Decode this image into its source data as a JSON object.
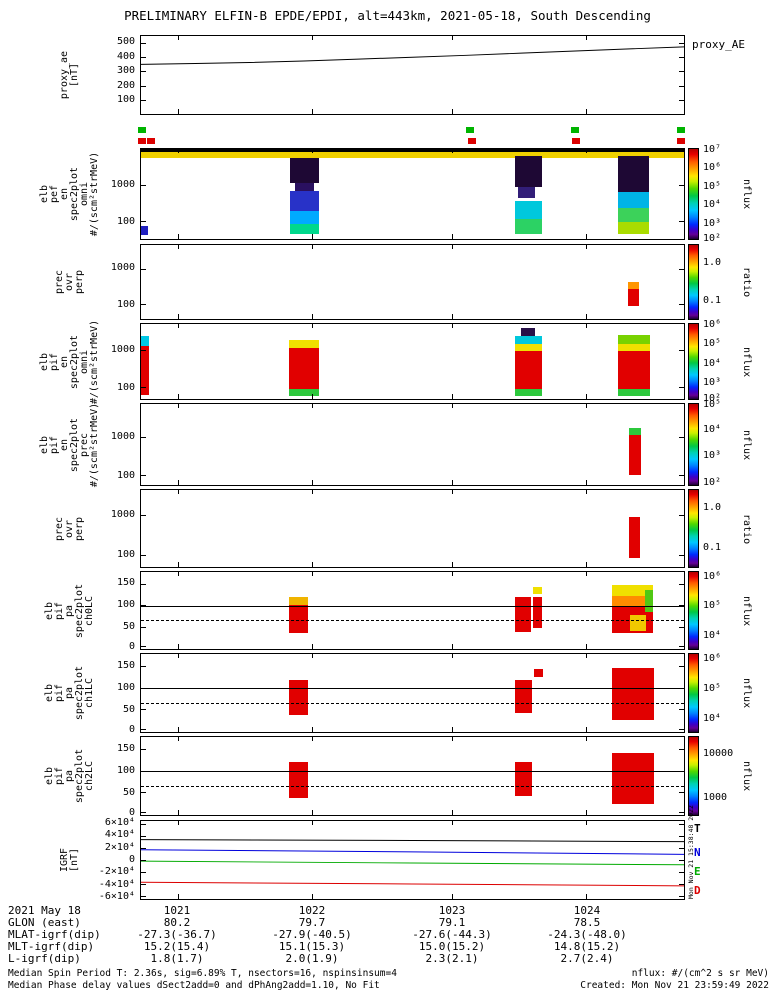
{
  "title": "PRELIMINARY ELFIN-B EPDE/EPDI, alt=443km, 2021-05-18, South Descending",
  "vertical_date": "Mon Nov 21 15:38:48 2022",
  "footer": {
    "left_line1": "Median Spin Period T: 2.36s, sig=6.89% T, nsectors=16, nspinsinsum=4",
    "left_line2": "Median Phase delay values dSect2add=0 and dPhAng2add=1.10, No Fit",
    "right_line1": "nflux: #/(cm^2 s sr MeV)",
    "right_line2": "Created: Mon Nov 21 23:59:49 2022"
  },
  "axis_table": {
    "row_labels": [
      "2021 May 18",
      "GLON (east)",
      "MLAT-igrf(dip)",
      "MLT-igrf(dip)",
      "L-igrf(dip)"
    ],
    "columns": [
      {
        "time": "1021",
        "glon": "80.2",
        "mlat": "-27.3(-36.7)",
        "mlt": "15.2(15.4)",
        "l": "1.8(1.7)"
      },
      {
        "time": "1022",
        "glon": "79.7",
        "mlat": "-27.9(-40.5)",
        "mlt": "15.1(15.3)",
        "l": "2.0(1.9)"
      },
      {
        "time": "1023",
        "glon": "79.1",
        "mlat": "-27.6(-44.3)",
        "mlt": "15.0(15.2)",
        "l": "2.3(2.1)"
      },
      {
        "time": "1024",
        "glon": "78.5",
        "mlat": "-24.3(-48.0)",
        "mlt": "14.8(15.2)",
        "l": "2.7(2.4)"
      }
    ]
  },
  "chart_data": {
    "type": "multi-panel-spectrogram",
    "x_axis_ticks": [
      "1021",
      "1022",
      "1023",
      "1024"
    ],
    "xticks_f": [
      0.068,
      0.3156,
      0.5725,
      0.8202
    ],
    "x_col_centers": [
      177,
      312,
      452,
      587
    ],
    "mark_colors": {
      "green": "#00b400",
      "red": "#dc0000"
    },
    "panels": [
      {
        "id": "proxy-ae",
        "top": 35,
        "h": 80,
        "left_lines": [
          "proxy_ae",
          "[nT]"
        ],
        "right_label": "proxy_AE",
        "yrange": [
          0,
          550
        ],
        "yticks": [
          [
            "500",
            0.091
          ],
          [
            "400",
            0.273
          ],
          [
            "300",
            0.455
          ],
          [
            "200",
            0.636
          ],
          [
            "100",
            0.818
          ]
        ],
        "lines": [
          {
            "name": "proxy_ae",
            "c": "#000000",
            "pts": [
              [
                0,
                350
              ],
              [
                0.1,
                356
              ],
              [
                0.2,
                363
              ],
              [
                0.3,
                374
              ],
              [
                0.4,
                387
              ],
              [
                0.5,
                400
              ],
              [
                0.6,
                414
              ],
              [
                0.7,
                429
              ],
              [
                0.8,
                444
              ],
              [
                0.9,
                459
              ],
              [
                1,
                473
              ]
            ]
          }
        ]
      },
      {
        "id": "quality-flags",
        "top": 127,
        "h": 20,
        "marks": {
          "green": [
            0.004,
            0.606,
            0.798,
            0.992
          ],
          "red": [
            0.004,
            0.02,
            0.61,
            0.8,
            0.992
          ]
        }
      },
      {
        "id": "pef-en-omni",
        "top": 148,
        "h": 92,
        "left_lines": [
          "elb",
          "pef",
          "en",
          "spec2plot",
          "omni",
          "#/(scm²strMeV)"
        ],
        "yticks": [
          [
            "1000",
            0.4
          ],
          [
            "100",
            0.8
          ]
        ],
        "colorbar": {
          "label": "nflux",
          "ticks": [
            [
              "10⁷",
              0.0
            ],
            [
              "10⁶",
              0.2
            ],
            [
              "10⁵",
              0.4
            ],
            [
              "10⁴",
              0.6
            ],
            [
              "10³",
              0.8
            ],
            [
              "10²",
              0.97
            ]
          ]
        },
        "blocks": [
          [
            0,
            0.0,
            1,
            0.035,
            "#000000"
          ],
          [
            0,
            0.035,
            1,
            0.06,
            "#f0d000"
          ],
          [
            0,
            0.86,
            0.013,
            0.1,
            "#2020c0"
          ],
          [
            0.275,
            0.1,
            0.052,
            0.28,
            "#1e0834"
          ],
          [
            0.283,
            0.38,
            0.036,
            0.09,
            "#2a1060"
          ],
          [
            0.275,
            0.47,
            0.052,
            0.22,
            "#2832c8"
          ],
          [
            0.275,
            0.69,
            0.052,
            0.14,
            "#00aaff"
          ],
          [
            0.275,
            0.83,
            0.052,
            0.12,
            "#00d88c"
          ],
          [
            0.688,
            0.08,
            0.05,
            0.34,
            "#1e0834"
          ],
          [
            0.694,
            0.42,
            0.032,
            0.12,
            "#321e78"
          ],
          [
            0.688,
            0.58,
            0.05,
            0.2,
            "#00c8dc"
          ],
          [
            0.688,
            0.78,
            0.05,
            0.16,
            "#2cd264"
          ],
          [
            0.878,
            0.08,
            0.058,
            0.4,
            "#1e0834"
          ],
          [
            0.878,
            0.48,
            0.058,
            0.18,
            "#00b4e6"
          ],
          [
            0.878,
            0.66,
            0.058,
            0.15,
            "#3cd25a"
          ],
          [
            0.878,
            0.81,
            0.058,
            0.13,
            "#aadc00"
          ]
        ]
      },
      {
        "id": "prec-ovr-perp-1",
        "top": 244,
        "h": 76,
        "left_lines": [
          "prec",
          "ovr",
          "perp"
        ],
        "yticks": [
          [
            "1000",
            0.32
          ],
          [
            "100",
            0.8
          ]
        ],
        "colorbar": {
          "label": "ratio",
          "ticks": [
            [
              "1.0",
              0.22
            ],
            [
              "0.1",
              0.72
            ]
          ]
        },
        "blocks": [
          [
            0.896,
            0.5,
            0.021,
            0.1,
            "#ff9600"
          ],
          [
            0.896,
            0.6,
            0.021,
            0.22,
            "#e10000"
          ]
        ]
      },
      {
        "id": "pif-en-omni",
        "top": 323,
        "h": 77,
        "left_lines": [
          "elb",
          "pif",
          "en",
          "spec2plot",
          "omni",
          "#/(scm²strMeV)"
        ],
        "yticks": [
          [
            "1000",
            0.35
          ],
          [
            "100",
            0.84
          ]
        ],
        "colorbar": {
          "label": "nflux",
          "ticks": [
            [
              "10⁶",
              0.0
            ],
            [
              "10⁵",
              0.25
            ],
            [
              "10⁴",
              0.5
            ],
            [
              "10³",
              0.75
            ],
            [
              "10²",
              0.96
            ]
          ]
        },
        "blocks": [
          [
            0,
            0.16,
            0.015,
            0.13,
            "#00c8e6"
          ],
          [
            0,
            0.29,
            0.015,
            0.66,
            "#e10000"
          ],
          [
            0.272,
            0.21,
            0.055,
            0.11,
            "#f0e000"
          ],
          [
            0.272,
            0.32,
            0.055,
            0.55,
            "#e10000"
          ],
          [
            0.272,
            0.87,
            0.055,
            0.09,
            "#2cc83c"
          ],
          [
            0.7,
            0.05,
            0.026,
            0.11,
            "#281048"
          ],
          [
            0.688,
            0.16,
            0.05,
            0.1,
            "#00c8dc"
          ],
          [
            0.688,
            0.26,
            0.05,
            0.1,
            "#f0e000"
          ],
          [
            0.688,
            0.36,
            0.05,
            0.51,
            "#e10000"
          ],
          [
            0.688,
            0.87,
            0.05,
            0.09,
            "#2cc83c"
          ],
          [
            0.878,
            0.15,
            0.06,
            0.11,
            "#78d200"
          ],
          [
            0.878,
            0.26,
            0.06,
            0.1,
            "#f0e000"
          ],
          [
            0.878,
            0.36,
            0.06,
            0.51,
            "#e10000"
          ],
          [
            0.878,
            0.87,
            0.06,
            0.09,
            "#2cc83c"
          ]
        ]
      },
      {
        "id": "pif-en-prec",
        "top": 403,
        "h": 83,
        "left_lines": [
          "elb",
          "pif",
          "en",
          "spec2plot",
          "prec",
          "#/(scm²strMeV)"
        ],
        "yticks": [
          [
            "1000",
            0.41
          ],
          [
            "100",
            0.88
          ]
        ],
        "colorbar": {
          "label": "nflux",
          "ticks": [
            [
              "10⁵",
              0.0
            ],
            [
              "10⁴",
              0.3
            ],
            [
              "10³",
              0.62
            ],
            [
              "10²",
              0.94
            ]
          ]
        },
        "blocks": [
          [
            0.898,
            0.3,
            0.022,
            0.08,
            "#2cc83c"
          ],
          [
            0.898,
            0.38,
            0.022,
            0.5,
            "#e10000"
          ]
        ]
      },
      {
        "id": "prec-ovr-perp-2",
        "top": 489,
        "h": 79,
        "left_lines": [
          "prec",
          "ovr",
          "perp"
        ],
        "yticks": [
          [
            "1000",
            0.33
          ],
          [
            "100",
            0.84
          ]
        ],
        "colorbar": {
          "label": "ratio",
          "ticks": [
            [
              "1.0",
              0.22
            ],
            [
              "0.1",
              0.72
            ]
          ]
        },
        "blocks": [
          [
            0.898,
            0.35,
            0.021,
            0.53,
            "#e10000"
          ]
        ]
      },
      {
        "id": "pa-ch0lc",
        "top": 571,
        "h": 79,
        "left_lines": [
          "elb",
          "pif",
          "pa",
          "spec2plot",
          "ch0LC"
        ],
        "yticks": [
          [
            "150",
            0.15
          ],
          [
            "100",
            0.43
          ],
          [
            "50",
            0.71
          ],
          [
            "0",
            0.96
          ]
        ],
        "hlines": [
          [
            0.4375,
            "solid"
          ],
          [
            0.625,
            "dashed"
          ]
        ],
        "colorbar": {
          "label": "nflux",
          "ticks": [
            [
              "10⁶",
              0.05
            ],
            [
              "10⁵",
              0.42
            ],
            [
              "10⁴",
              0.8
            ]
          ]
        },
        "blocks": [
          [
            0.272,
            0.33,
            0.035,
            0.1,
            "#f0b400"
          ],
          [
            0.272,
            0.43,
            0.035,
            0.36,
            "#e10000"
          ],
          [
            0.688,
            0.33,
            0.031,
            0.45,
            "#e10000"
          ],
          [
            0.722,
            0.2,
            0.017,
            0.09,
            "#f0e000"
          ],
          [
            0.722,
            0.33,
            0.017,
            0.4,
            "#e10000"
          ],
          [
            0.867,
            0.17,
            0.076,
            0.14,
            "#f0e000"
          ],
          [
            0.867,
            0.31,
            0.076,
            0.13,
            "#ff8c00"
          ],
          [
            0.867,
            0.44,
            0.076,
            0.35,
            "#e10000"
          ],
          [
            0.928,
            0.24,
            0.015,
            0.28,
            "#50c814"
          ],
          [
            0.9,
            0.56,
            0.03,
            0.2,
            "#f0c800"
          ]
        ]
      },
      {
        "id": "pa-ch1lc",
        "top": 653,
        "h": 80,
        "left_lines": [
          "elb",
          "pif",
          "pa",
          "spec2plot",
          "ch1LC"
        ],
        "yticks": [
          [
            "150",
            0.16
          ],
          [
            "100",
            0.44
          ],
          [
            "50",
            0.71
          ],
          [
            "0",
            0.96
          ]
        ],
        "hlines": [
          [
            0.4375,
            "solid"
          ],
          [
            0.625,
            "dashed"
          ]
        ],
        "colorbar": {
          "label": "nflux",
          "ticks": [
            [
              "10⁶",
              0.05
            ],
            [
              "10⁵",
              0.42
            ],
            [
              "10⁴",
              0.8
            ]
          ]
        },
        "blocks": [
          [
            0.272,
            0.33,
            0.035,
            0.45,
            "#e10000"
          ],
          [
            0.688,
            0.33,
            0.032,
            0.43,
            "#e10000"
          ],
          [
            0.724,
            0.19,
            0.016,
            0.1,
            "#e10000"
          ],
          [
            0.867,
            0.18,
            0.077,
            0.67,
            "#e10000"
          ]
        ]
      },
      {
        "id": "pa-ch2lc",
        "top": 736,
        "h": 80,
        "left_lines": [
          "elb",
          "pif",
          "pa",
          "spec2plot",
          "ch2LC"
        ],
        "yticks": [
          [
            "150",
            0.16
          ],
          [
            "100",
            0.44
          ],
          [
            "50",
            0.71
          ],
          [
            "0",
            0.96
          ]
        ],
        "hlines": [
          [
            0.4375,
            "solid"
          ],
          [
            0.625,
            "dashed"
          ]
        ],
        "colorbar": {
          "label": "nflux",
          "ticks": [
            [
              "10000",
              0.2
            ],
            [
              "1000",
              0.75
            ]
          ]
        },
        "blocks": [
          [
            0.272,
            0.32,
            0.035,
            0.46,
            "#e10000"
          ],
          [
            0.688,
            0.32,
            0.032,
            0.44,
            "#e10000"
          ],
          [
            0.867,
            0.2,
            0.077,
            0.66,
            "#e10000"
          ]
        ]
      },
      {
        "id": "igrf",
        "top": 820,
        "h": 80,
        "left_lines": [
          "IGRF",
          "[nT]"
        ],
        "yrange": [
          -65000,
          65000
        ],
        "yticks": [
          [
            "6×10⁴",
            0.038
          ],
          [
            "4×10⁴",
            0.192
          ],
          [
            "2×10⁴",
            0.346
          ],
          [
            "0",
            0.5
          ],
          [
            "-2×10⁴",
            0.654
          ],
          [
            "-4×10⁴",
            0.808
          ],
          [
            "-6×10⁴",
            0.962
          ]
        ],
        "right_letters": [
          [
            "T",
            "#000000",
            0.02
          ],
          [
            "N",
            "#0000dc",
            0.32
          ],
          [
            "E",
            "#00aa00",
            0.56
          ],
          [
            "D",
            "#dc0000",
            0.8
          ]
        ],
        "lines": [
          {
            "name": "T",
            "c": "#000000",
            "pts": [
              [
                0,
                34000
              ],
              [
                0.5,
                32500
              ],
              [
                1,
                30500
              ]
            ]
          },
          {
            "name": "N",
            "c": "#0000dc",
            "pts": [
              [
                0,
                17000
              ],
              [
                0.5,
                13500
              ],
              [
                1,
                9500
              ]
            ]
          },
          {
            "name": "E",
            "c": "#00aa00",
            "pts": [
              [
                0,
                -2000
              ],
              [
                0.5,
                -5000
              ],
              [
                1,
                -8000
              ]
            ]
          },
          {
            "name": "D",
            "c": "#dc0000",
            "pts": [
              [
                0,
                -37000
              ],
              [
                0.5,
                -40000
              ],
              [
                1,
                -43000
              ]
            ]
          }
        ]
      }
    ]
  }
}
